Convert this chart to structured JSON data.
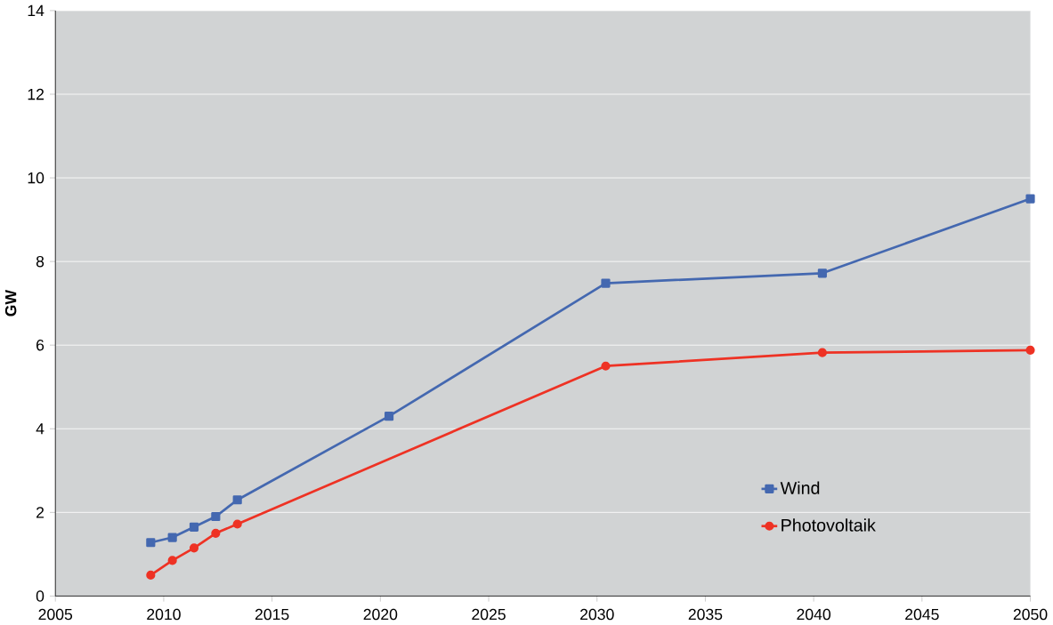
{
  "chart_data": {
    "type": "line",
    "ylabel": "GW",
    "xlim": [
      2005,
      2050
    ],
    "xticks": [
      2005,
      2010,
      2015,
      2020,
      2025,
      2030,
      2035,
      2040,
      2045,
      2050
    ],
    "ylim": [
      0,
      14
    ],
    "yticks": [
      0,
      2,
      4,
      6,
      8,
      10,
      12,
      14
    ],
    "grid": "y",
    "legend": "bottom right",
    "series": [
      {
        "name": "Wind",
        "color": "#4468b0",
        "marker": "square",
        "x": [
          2009.4,
          2010.4,
          2011.4,
          2012.4,
          2013.4,
          2020.4,
          2030.4,
          2040.4,
          2050
        ],
        "values": [
          1.28,
          1.4,
          1.65,
          1.9,
          2.3,
          4.3,
          7.48,
          7.72,
          9.5
        ]
      },
      {
        "name": "Photovoltaik",
        "color": "#ee3224",
        "marker": "circle",
        "x": [
          2009.4,
          2010.4,
          2011.4,
          2012.4,
          2013.4,
          2030.4,
          2040.4,
          2050
        ],
        "values": [
          0.5,
          0.85,
          1.15,
          1.5,
          1.72,
          5.5,
          5.82,
          5.88
        ]
      }
    ]
  }
}
